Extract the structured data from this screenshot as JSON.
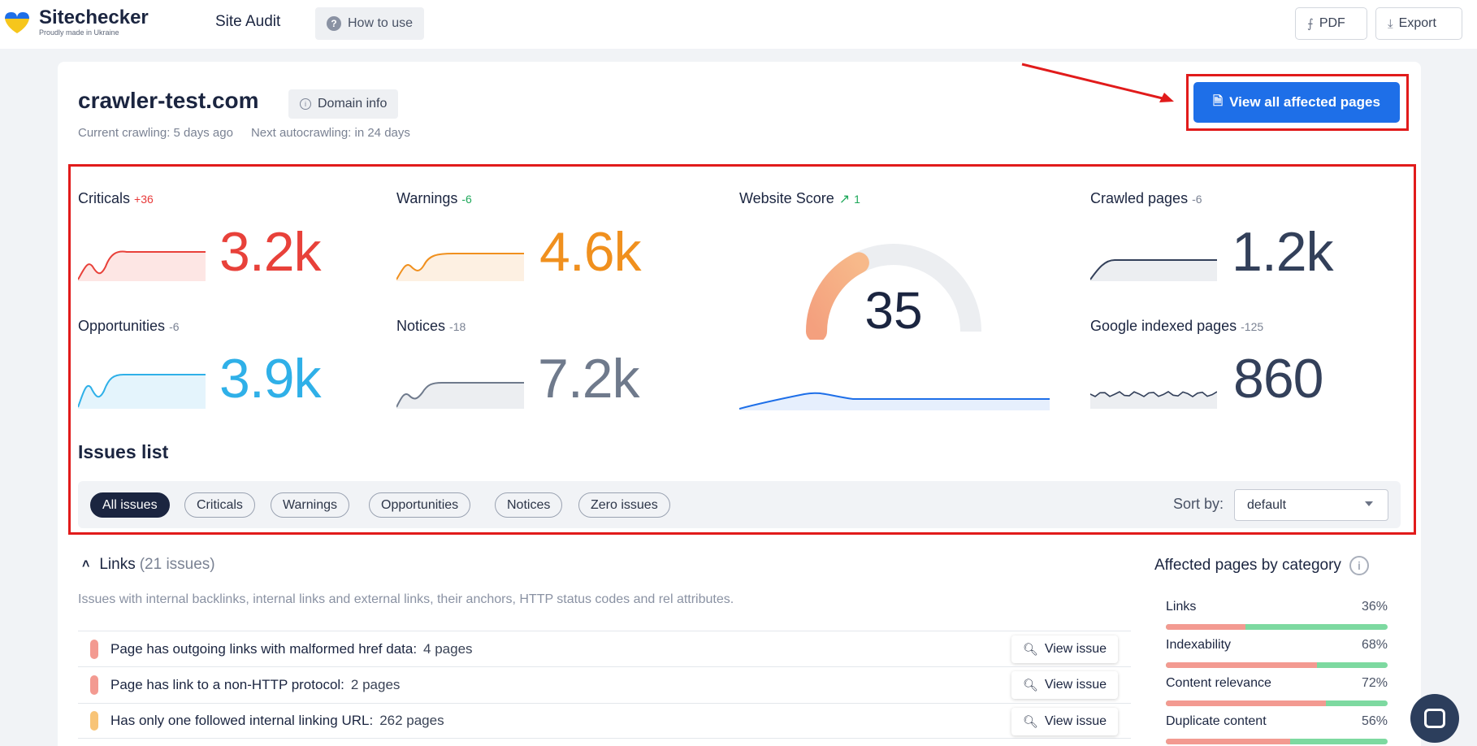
{
  "brand": {
    "name": "Sitechecker",
    "tagline": "Proudly made in Ukraine"
  },
  "nav": {
    "site_audit": "Site Audit",
    "how_to_use": "How to use",
    "how_icon": "question-circle-icon"
  },
  "toolbar": {
    "pdf_label": "PDF",
    "export_label": "Export",
    "pdf_icon": "pdf-icon",
    "export_icon": "download-icon"
  },
  "project": {
    "domain": "crawler-test.com",
    "domain_info_label": "Domain info",
    "current_crawling": "Current crawling: 5 days ago",
    "next_autocrawling": "Next autocrawling: in 24 days",
    "view_all_label": "View all affected pages"
  },
  "stats": {
    "criticals": {
      "label": "Criticals",
      "delta": "+36",
      "value": "3.2k",
      "color": "#e8413a"
    },
    "warnings": {
      "label": "Warnings",
      "delta": "-6",
      "value": "4.6k",
      "color": "#f0901e"
    },
    "opportunities": {
      "label": "Opportunities",
      "delta": "-6",
      "value": "3.9k",
      "color": "#2fb0e8"
    },
    "notices": {
      "label": "Notices",
      "delta": "-18",
      "value": "7.2k",
      "color": "#6f7a8c"
    },
    "website_score": {
      "label": "Website Score",
      "delta": "1",
      "value": "35",
      "score_fraction": 0.35
    },
    "crawled_pages": {
      "label": "Crawled pages",
      "delta": "-6",
      "value": "1.2k",
      "color": "#33405a"
    },
    "google_indexed": {
      "label": "Google indexed pages",
      "delta": "-125",
      "value": "860",
      "color": "#33405a"
    }
  },
  "issues": {
    "title": "Issues list",
    "filters": [
      "All issues",
      "Criticals",
      "Warnings",
      "Opportunities",
      "Notices",
      "Zero issues"
    ],
    "active_filter": "All issues",
    "sort_label": "Sort by:",
    "sort_value": "default"
  },
  "links_section": {
    "title": "Links",
    "count": "(21 issues)",
    "description": "Issues with internal backlinks, internal links and external links, their anchors, HTTP status codes and rel attributes.",
    "rows": [
      {
        "text": "Page has outgoing links with malformed href data:",
        "pages": "4 pages",
        "severity_color": "#f39a91",
        "action": "View issue"
      },
      {
        "text": "Page has link to a non-HTTP protocol:",
        "pages": "2 pages",
        "severity_color": "#f39a91",
        "action": "View issue"
      },
      {
        "text": "Has only one followed internal linking URL:",
        "pages": "262 pages",
        "severity_color": "#f8c477",
        "action": "View issue"
      }
    ]
  },
  "affected_by_category": {
    "title": "Affected pages by category",
    "items": [
      {
        "label": "Links",
        "pct": "36%",
        "value": 0.36
      },
      {
        "label": "Indexability",
        "pct": "68%",
        "value": 0.68
      },
      {
        "label": "Content relevance",
        "pct": "72%",
        "value": 0.72
      },
      {
        "label": "Duplicate content",
        "pct": "56%",
        "value": 0.56
      }
    ]
  }
}
